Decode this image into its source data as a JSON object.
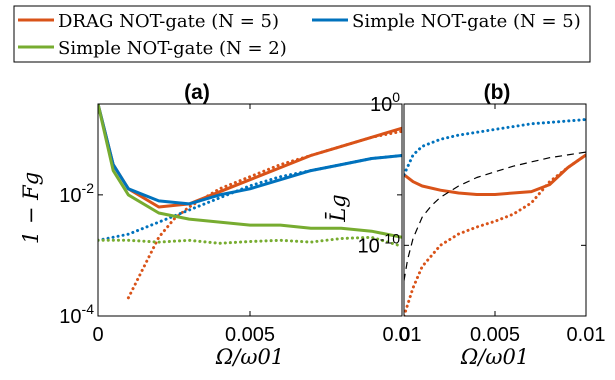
{
  "legend": {
    "entries": [
      {
        "label": "DRAG NOT-gate (N = 5)",
        "color": "#d95319"
      },
      {
        "label": "Simple NOT-gate (N = 5)",
        "color": "#0072bd"
      },
      {
        "label": "Simple NOT-gate (N = 2)",
        "color": "#77ac30"
      }
    ]
  },
  "chart_data": [
    {
      "type": "line",
      "title": "(a)",
      "xlabel": "Ω/ω01",
      "ylabel": "1 − Fg",
      "yscale": "log",
      "xlim": [
        0,
        0.01
      ],
      "ylim_log10": [
        -4,
        -0.5
      ],
      "xticks": [
        0,
        0.005,
        0.01
      ],
      "xticklabels": [
        "0",
        "0.005",
        "0.01"
      ],
      "yticks_log10": [
        -4,
        -2
      ],
      "yticklabels": [
        "10^-4",
        "10^-2"
      ],
      "grid": false,
      "series": [
        {
          "legend_ref": 0,
          "color": "#d95319",
          "style": "solid",
          "x": [
            0,
            0.0005,
            0.001,
            0.002,
            0.003,
            0.004,
            0.005,
            0.006,
            0.007,
            0.008,
            0.009,
            0.01
          ],
          "log10_y": [
            -0.5,
            -1.5,
            -1.9,
            -2.2,
            -2.15,
            -1.95,
            -1.75,
            -1.55,
            -1.35,
            -1.2,
            -1.05,
            -0.9
          ]
        },
        {
          "legend_ref": 0,
          "color": "#d95319",
          "style": "dotted",
          "x": [
            0.001,
            0.0015,
            0.002,
            0.0025,
            0.003,
            0.004,
            0.005,
            0.006,
            0.007,
            0.008,
            0.009,
            0.01
          ],
          "log10_y": [
            -3.7,
            -3.2,
            -2.7,
            -2.4,
            -2.2,
            -1.9,
            -1.7,
            -1.5,
            -1.35,
            -1.2,
            -1.05,
            -0.95
          ]
        },
        {
          "legend_ref": 1,
          "color": "#0072bd",
          "style": "solid",
          "x": [
            0,
            0.0005,
            0.001,
            0.002,
            0.003,
            0.004,
            0.005,
            0.006,
            0.007,
            0.008,
            0.009,
            0.01
          ],
          "log10_y": [
            -0.5,
            -1.5,
            -1.9,
            -2.1,
            -2.15,
            -2.0,
            -1.9,
            -1.75,
            -1.6,
            -1.5,
            -1.4,
            -1.35
          ]
        },
        {
          "legend_ref": 1,
          "color": "#0072bd",
          "style": "dotted",
          "x": [
            0,
            0.001,
            0.002,
            0.003,
            0.004,
            0.005,
            0.006,
            0.007,
            0.008,
            0.009,
            0.01
          ],
          "log10_y": [
            -2.75,
            -2.65,
            -2.45,
            -2.25,
            -2.05,
            -1.85,
            -1.7,
            -1.6,
            -1.5,
            -1.4,
            -1.35
          ]
        },
        {
          "legend_ref": 2,
          "color": "#77ac30",
          "style": "solid",
          "x": [
            0,
            0.0005,
            0.001,
            0.002,
            0.003,
            0.004,
            0.005,
            0.006,
            0.007,
            0.008,
            0.009,
            0.01
          ],
          "log10_y": [
            -0.5,
            -1.6,
            -2.0,
            -2.3,
            -2.4,
            -2.45,
            -2.5,
            -2.5,
            -2.55,
            -2.55,
            -2.6,
            -2.7
          ]
        },
        {
          "legend_ref": 2,
          "color": "#77ac30",
          "style": "dotted",
          "x": [
            0,
            0.001,
            0.002,
            0.003,
            0.004,
            0.005,
            0.006,
            0.007,
            0.008,
            0.009,
            0.01
          ],
          "log10_y": [
            -2.75,
            -2.75,
            -2.78,
            -2.75,
            -2.8,
            -2.77,
            -2.75,
            -2.78,
            -2.72,
            -2.7,
            -2.85
          ]
        }
      ]
    },
    {
      "type": "line",
      "title": "(b)",
      "xlabel": "Ω/ω01",
      "ylabel": "L̄g",
      "yscale": "log",
      "xlim": [
        0,
        0.01
      ],
      "ylim_log10": [
        -15,
        0
      ],
      "xticks": [
        0,
        0.005,
        0.01
      ],
      "xticklabels": [
        "0",
        "0.005",
        "0.01"
      ],
      "yticks_log10": [
        -10,
        0
      ],
      "yticklabels": [
        "10^-10",
        "10^0"
      ],
      "grid": false,
      "series": [
        {
          "legend_ref": 0,
          "color": "#d95319",
          "style": "solid",
          "x": [
            0,
            0.0005,
            0.001,
            0.002,
            0.003,
            0.004,
            0.005,
            0.006,
            0.007,
            0.008,
            0.009,
            0.01
          ],
          "log10_y": [
            -5,
            -5.5,
            -5.8,
            -6.1,
            -6.3,
            -6.4,
            -6.4,
            -6.3,
            -6.2,
            -5.7,
            -4.5,
            -3.6
          ]
        },
        {
          "legend_ref": 0,
          "color": "#d95319",
          "style": "dotted",
          "x": [
            0,
            0.0005,
            0.001,
            0.002,
            0.003,
            0.004,
            0.005,
            0.006,
            0.007,
            0.008,
            0.009,
            0.01
          ],
          "log10_y": [
            -15,
            -13,
            -11.5,
            -10,
            -9.2,
            -8.7,
            -8.3,
            -7.8,
            -7.0,
            -5.5,
            -4.5,
            -3.6
          ]
        },
        {
          "legend_ref": 1,
          "color": "#0072bd",
          "style": "dotted",
          "x": [
            0,
            0.0005,
            0.001,
            0.002,
            0.003,
            0.004,
            0.005,
            0.006,
            0.007,
            0.008,
            0.009,
            0.01
          ],
          "log10_y": [
            -5,
            -3.6,
            -3.0,
            -2.5,
            -2.2,
            -2.0,
            -1.8,
            -1.6,
            -1.4,
            -1.3,
            -1.2,
            -1.1
          ]
        },
        {
          "color": "#000000",
          "style": "dashed",
          "x": [
            0,
            0.0002,
            0.0005,
            0.001,
            0.0015,
            0.002,
            0.003,
            0.004,
            0.005,
            0.006,
            0.007,
            0.008,
            0.009,
            0.01
          ],
          "log10_y": [
            -12.5,
            -11.0,
            -9.5,
            -8.0,
            -7.2,
            -6.6,
            -5.8,
            -5.2,
            -4.8,
            -4.4,
            -4.1,
            -3.8,
            -3.6,
            -3.4
          ]
        }
      ]
    }
  ]
}
